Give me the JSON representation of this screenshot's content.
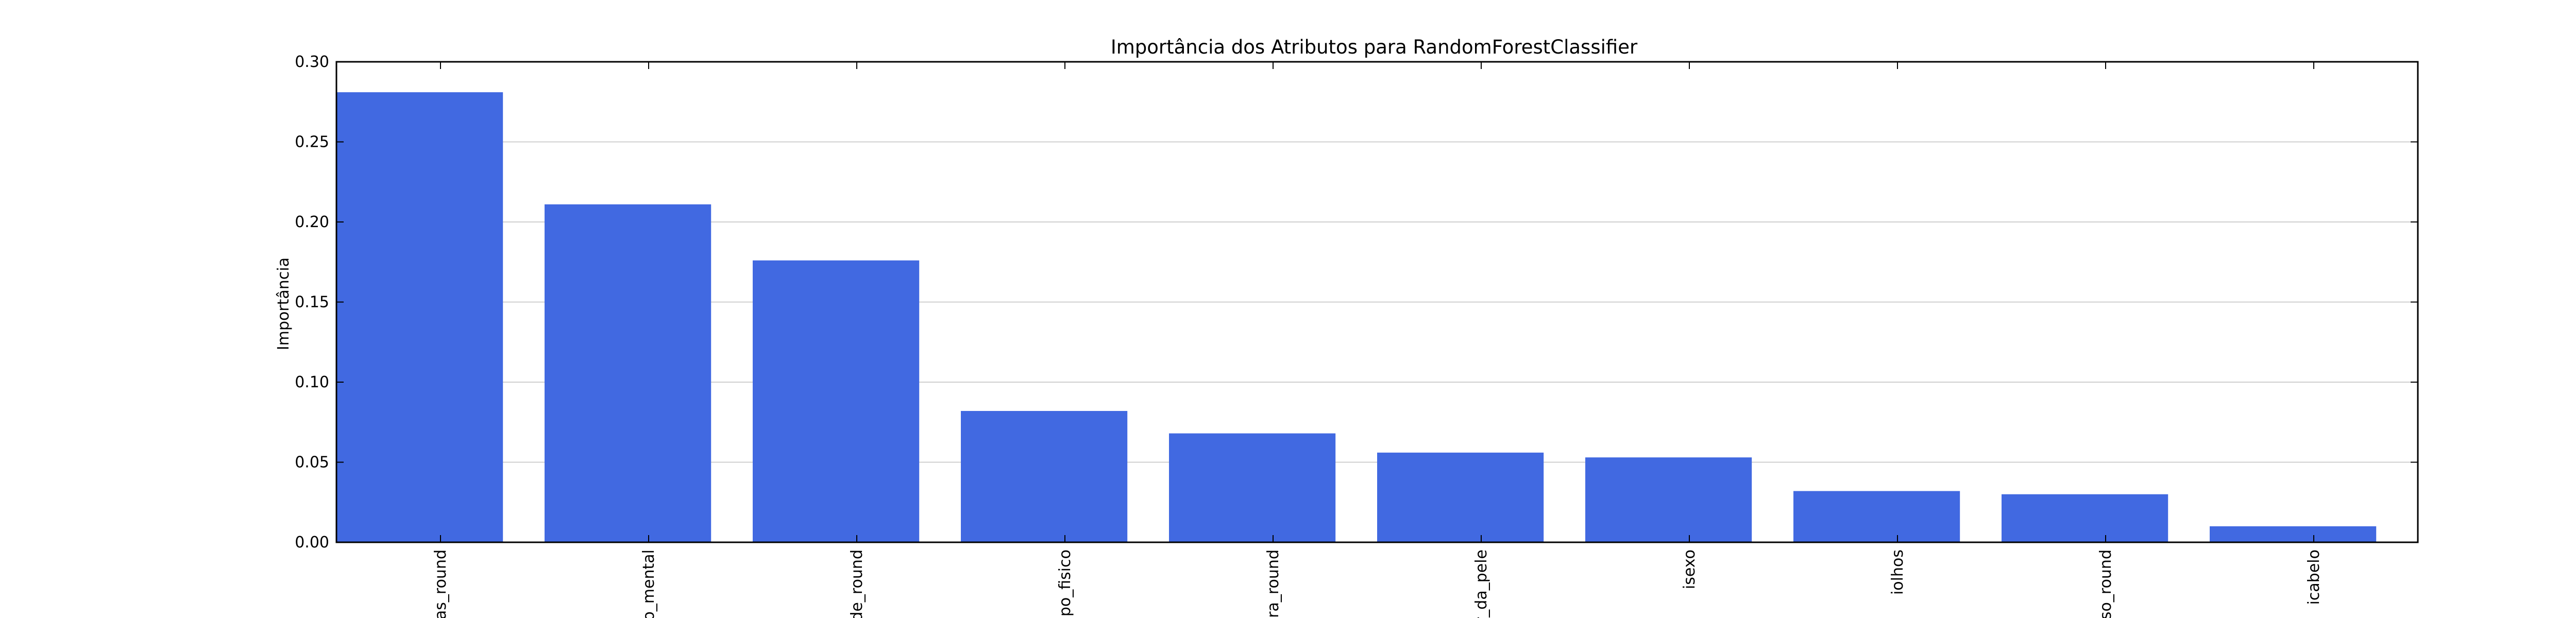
{
  "chart_data": {
    "type": "bar",
    "title": "Importância dos Atributos para RandomForestClassifier",
    "xlabel": "",
    "ylabel": "Importância",
    "ylim": [
      0,
      0.3
    ],
    "yticks": [
      "0.00",
      "0.05",
      "0.10",
      "0.15",
      "0.20",
      "0.25",
      "0.30"
    ],
    "grid": "horizontal",
    "bar_color": "#4169e1",
    "categories": [
      "ias_round",
      "io_mental",
      "de_round",
      "ipo_fisico",
      "ura_round",
      "r_da_pele",
      "isexo",
      "iolhos",
      "eso_round",
      "icabelo"
    ],
    "values": [
      0.281,
      0.211,
      0.176,
      0.082,
      0.068,
      0.056,
      0.053,
      0.032,
      0.03,
      0.01
    ]
  }
}
